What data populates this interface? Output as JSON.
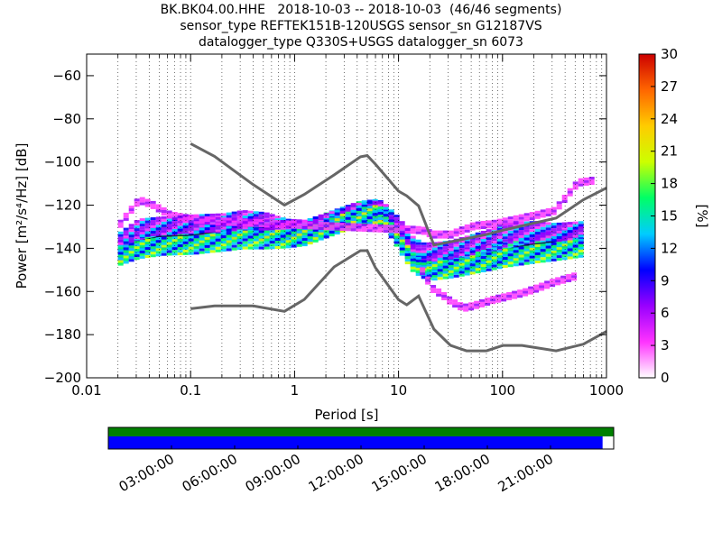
{
  "header": {
    "title_line1": "BK.BK04.00.HHE   2018-10-03 -- 2018-10-03  (46/46 segments)",
    "title_line2": "sensor_type REFTEK151B-120USGS sensor_sn G12187VS",
    "title_line3": "datalogger_type Q330S+USGS datalogger_sn 6073"
  },
  "chart_data": {
    "type": "heatmap",
    "xlabel": "Period [s]",
    "ylabel": "Power [m²/s⁴/Hz] [dB]",
    "x_scale": "log",
    "xlim": [
      0.01,
      1000
    ],
    "ylim": [
      -200,
      -50
    ],
    "x_ticks": [
      0.01,
      0.1,
      1,
      10,
      100,
      1000
    ],
    "x_tick_labels": [
      "0.01",
      "0.1",
      "1",
      "10",
      "100",
      "1000"
    ],
    "y_ticks": [
      -200,
      -180,
      -160,
      -140,
      -120,
      -100,
      -80,
      -60
    ],
    "y_tick_labels": [
      "−200",
      "−180",
      "−160",
      "−140",
      "−120",
      "−100",
      "−80",
      "−60"
    ],
    "grid": "dotted vertical",
    "colorbar": {
      "label": "[%]",
      "range": [
        0,
        30
      ],
      "ticks": [
        0,
        3,
        6,
        9,
        12,
        15,
        18,
        21,
        24,
        27,
        30
      ],
      "colormap": [
        "#ffffff",
        "#ff33ff",
        "#9900ff",
        "#0000ff",
        "#00ccff",
        "#00ff66",
        "#ccff00",
        "#ffcc00",
        "#ff6600",
        "#cc0000"
      ]
    },
    "noise_models": [
      {
        "model": "NHNM",
        "color": "#666666",
        "points": [
          [
            0.1,
            -91.5
          ],
          [
            0.17,
            -97.4
          ],
          [
            0.4,
            -110.5
          ],
          [
            0.8,
            -120
          ],
          [
            1.24,
            -115
          ],
          [
            2.4,
            -106
          ],
          [
            4.3,
            -97.6
          ],
          [
            5,
            -97
          ],
          [
            6,
            -101
          ],
          [
            10,
            -113.5
          ],
          [
            12,
            -115.7
          ],
          [
            15.6,
            -120.3
          ],
          [
            21.9,
            -138.5
          ],
          [
            31.6,
            -137
          ],
          [
            45,
            -135.5
          ],
          [
            70,
            -133.6
          ],
          [
            101,
            -131.6
          ],
          [
            154,
            -129.6
          ],
          [
            328,
            -126
          ],
          [
            600,
            -117.5
          ],
          [
            1000,
            -112
          ]
        ]
      },
      {
        "model": "NLNM",
        "color": "#666666",
        "points": [
          [
            0.1,
            -168
          ],
          [
            0.17,
            -166.7
          ],
          [
            0.4,
            -166.7
          ],
          [
            0.8,
            -169.2
          ],
          [
            1.24,
            -163.7
          ],
          [
            2.4,
            -148.6
          ],
          [
            4.3,
            -141.1
          ],
          [
            5,
            -141.1
          ],
          [
            6,
            -149
          ],
          [
            10,
            -163.8
          ],
          [
            12,
            -166.2
          ],
          [
            15.6,
            -162.1
          ],
          [
            21.9,
            -177.5
          ],
          [
            31.6,
            -185
          ],
          [
            45,
            -187.5
          ],
          [
            70,
            -187.5
          ],
          [
            101,
            -185
          ],
          [
            154,
            -185
          ],
          [
            328,
            -187.5
          ],
          [
            600,
            -184.4
          ],
          [
            1000,
            -178.5
          ]
        ]
      }
    ],
    "ridges": [
      {
        "name": "main",
        "color": "#0000ee",
        "points": [
          [
            0.02,
            -141
          ],
          [
            0.03,
            -137
          ],
          [
            0.05,
            -134.5
          ],
          [
            0.1,
            -134
          ],
          [
            0.2,
            -132
          ],
          [
            0.3,
            -130
          ],
          [
            0.5,
            -130.5
          ],
          [
            0.8,
            -132.5
          ],
          [
            1.2,
            -132
          ],
          [
            2,
            -128
          ],
          [
            3,
            -125
          ],
          [
            4,
            -123
          ],
          [
            5,
            -122.5
          ],
          [
            6,
            -122
          ],
          [
            7,
            -124
          ],
          [
            9,
            -131
          ],
          [
            11,
            -137
          ],
          [
            13,
            -143
          ],
          [
            16,
            -147
          ],
          [
            20,
            -147
          ],
          [
            30,
            -146
          ],
          [
            50,
            -144.5
          ],
          [
            80,
            -142
          ],
          [
            100,
            -141
          ],
          [
            150,
            -139
          ],
          [
            200,
            -138
          ],
          [
            300,
            -137
          ],
          [
            600,
            -134
          ]
        ]
      },
      {
        "name": "upper",
        "color": "#9900ff",
        "points": [
          [
            0.02,
            -136
          ],
          [
            0.03,
            -130
          ],
          [
            0.05,
            -129
          ],
          [
            0.1,
            -128
          ],
          [
            0.2,
            -127.5
          ],
          [
            0.3,
            -126
          ],
          [
            0.5,
            -127
          ],
          [
            0.8,
            -130
          ],
          [
            1.2,
            -130.5
          ],
          [
            2,
            -127
          ],
          [
            3,
            -124.5
          ],
          [
            4,
            -122.5
          ],
          [
            5,
            -122
          ],
          [
            6,
            -121.5
          ],
          [
            7,
            -123
          ],
          [
            9,
            -128
          ],
          [
            11,
            -133
          ],
          [
            13,
            -138
          ],
          [
            16,
            -141
          ],
          [
            20,
            -141
          ],
          [
            30,
            -140
          ],
          [
            50,
            -137
          ],
          [
            80,
            -134
          ],
          [
            100,
            -132
          ],
          [
            200,
            -131
          ],
          [
            300,
            -132
          ],
          [
            600,
            -131
          ]
        ]
      },
      {
        "name": "lower",
        "color": "#00dd44",
        "points": [
          [
            0.02,
            -143
          ],
          [
            0.03,
            -140
          ],
          [
            0.05,
            -138.5
          ],
          [
            0.1,
            -138
          ],
          [
            0.2,
            -136.5
          ],
          [
            0.3,
            -135.5
          ],
          [
            0.5,
            -135.5
          ],
          [
            0.8,
            -135
          ],
          [
            1.2,
            -134
          ],
          [
            2,
            -130
          ],
          [
            3,
            -127
          ],
          [
            4,
            -125
          ],
          [
            5,
            -124
          ],
          [
            6,
            -123.5
          ],
          [
            7,
            -126
          ],
          [
            9,
            -134
          ],
          [
            11,
            -141
          ],
          [
            13,
            -146
          ],
          [
            16,
            -149
          ],
          [
            20,
            -150
          ],
          [
            30,
            -149
          ],
          [
            50,
            -147
          ],
          [
            80,
            -145
          ],
          [
            100,
            -144
          ],
          [
            200,
            -142
          ],
          [
            300,
            -141
          ],
          [
            600,
            -139
          ]
        ]
      },
      {
        "name": "outliers-high",
        "color": "#ff33ff",
        "points": [
          [
            0.02,
            -128
          ],
          [
            0.03,
            -117
          ],
          [
            0.04,
            -119
          ],
          [
            0.06,
            -124
          ],
          [
            0.1,
            -126
          ],
          [
            0.2,
            -127
          ],
          [
            16,
            -131
          ],
          [
            20,
            -133
          ],
          [
            30,
            -133
          ],
          [
            50,
            -129
          ],
          [
            80,
            -128
          ],
          [
            100,
            -127
          ],
          [
            200,
            -124
          ],
          [
            300,
            -122
          ],
          [
            500,
            -109
          ],
          [
            700,
            -108
          ]
        ]
      },
      {
        "name": "outliers-low",
        "color": "#cc00ff",
        "points": [
          [
            16,
            -150
          ],
          [
            20,
            -158
          ],
          [
            25,
            -161
          ],
          [
            30,
            -164
          ],
          [
            40,
            -167
          ],
          [
            50,
            -166
          ],
          [
            80,
            -163
          ],
          [
            100,
            -162
          ],
          [
            150,
            -160
          ],
          [
            200,
            -158
          ],
          [
            300,
            -155
          ],
          [
            500,
            -152
          ]
        ]
      }
    ]
  },
  "timeline": {
    "tick_labels": [
      "03:00:00",
      "06:00:00",
      "09:00:00",
      "12:00:00",
      "15:00:00",
      "18:00:00",
      "21:00:00"
    ],
    "top_bar_color": "#008000",
    "bottom_bar_color": "#0000ff",
    "data_coverage": 0.978
  }
}
